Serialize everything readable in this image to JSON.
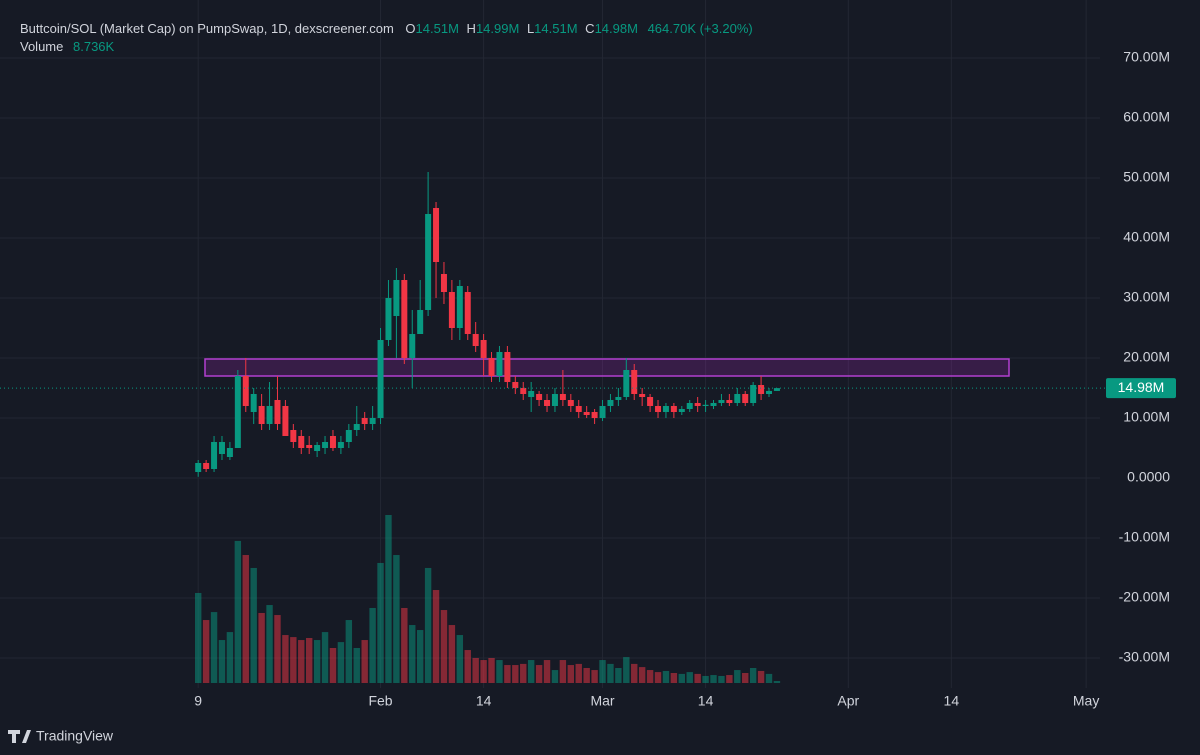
{
  "chart_data": {
    "type": "candlestick",
    "title": "Buttcoin/SOL (Market Cap) on PumpSwap, 1D, dexscreener.com",
    "ohlc_keys": [
      "O",
      "H",
      "L",
      "C"
    ],
    "last_labels": [
      "14.51M",
      "14.99M",
      "14.51M",
      "14.98M"
    ],
    "change_label": "464.70K (+3.20%)",
    "volume_title": "Volume",
    "volume_last_label": "8.736K",
    "brand": "TradingView",
    "x": [
      0,
      1,
      2,
      3,
      4,
      5,
      6,
      7,
      8,
      9,
      10,
      11,
      12,
      13,
      14,
      15,
      16,
      17,
      18,
      19,
      20,
      21,
      22,
      23,
      24,
      25,
      26,
      27,
      28,
      29,
      30,
      31,
      32,
      33,
      34,
      35,
      36,
      37,
      38,
      39,
      40,
      41,
      42,
      43,
      44,
      45,
      46,
      47,
      48,
      49,
      50,
      51,
      52,
      53,
      54,
      55,
      56,
      57,
      58,
      59,
      60,
      61,
      62,
      63,
      64,
      65,
      66,
      67,
      68,
      69,
      70,
      71,
      72,
      73
    ],
    "open": [
      1000000.0,
      2500000.0,
      1500000.0,
      4000000.0,
      3500000.0,
      5000000.0,
      17000000.0,
      11000000.0,
      12000000.0,
      9000000.0,
      13000000.0,
      12000000.0,
      8000000.0,
      7000000.0,
      5500000.0,
      4500000.0,
      5000000.0,
      7000000.0,
      5000000.0,
      6000000.0,
      8000000.0,
      10000000.0,
      9000000.0,
      10000000.0,
      23000000.0,
      27000000.0,
      33000000.0,
      20000000.0,
      24000000.0,
      28000000.0,
      45000000.0,
      34000000.0,
      31000000.0,
      25000000.0,
      31000000.0,
      24000000.0,
      23000000.0,
      20000000.0,
      17000000.0,
      21000000.0,
      16000000.0,
      15000000.0,
      13500000.0,
      14000000.0,
      13000000.0,
      12000000.0,
      14000000.0,
      13000000.0,
      12000000.0,
      11000000.0,
      11000000.0,
      10000000.0,
      12000000.0,
      13000000.0,
      13500000.0,
      18000000.0,
      14000000.0,
      13500000.0,
      12000000.0,
      11000000.0,
      12000000.0,
      11000000.0,
      11500000.0,
      12500000.0,
      12000000.0,
      12000000.0,
      12500000.0,
      13000000.0,
      12500000.0,
      14000000.0,
      12500000.0,
      15500000.0,
      14000000.0,
      14510000.0
    ],
    "high": [
      3000000.0,
      3000000.0,
      7000000.0,
      7000000.0,
      6000000.0,
      18000000.0,
      20000000.0,
      15000000.0,
      14000000.0,
      16000000.0,
      17000000.0,
      13000000.0,
      9000000.0,
      8000000.0,
      7000000.0,
      6000000.0,
      7000000.0,
      8000000.0,
      7000000.0,
      9000000.0,
      12000000.0,
      11000000.0,
      12000000.0,
      25000000.0,
      33000000.0,
      35000000.0,
      34000000.0,
      28000000.0,
      33000000.0,
      51000000.0,
      46000000.0,
      36000000.0,
      33000000.0,
      33000000.0,
      32000000.0,
      26000000.0,
      24000000.0,
      21000000.0,
      22000000.0,
      22000000.0,
      17000000.0,
      16000000.0,
      16000000.0,
      14500000.0,
      14000000.0,
      15000000.0,
      18000000.0,
      14000000.0,
      13000000.0,
      12000000.0,
      11500000.0,
      13000000.0,
      14000000.0,
      15000000.0,
      20000000.0,
      19000000.0,
      15000000.0,
      14000000.0,
      13000000.0,
      12500000.0,
      12500000.0,
      12000000.0,
      13000000.0,
      13500000.0,
      13000000.0,
      13000000.0,
      14000000.0,
      14000000.0,
      15000000.0,
      14500000.0,
      16000000.0,
      17000000.0,
      15000000.0,
      14990000.0
    ],
    "low": [
      200000.0,
      1000000.0,
      1000000.0,
      3000000.0,
      3000000.0,
      5000000.0,
      11000000.0,
      9000000.0,
      8000000.0,
      8000000.0,
      8000000.0,
      7000000.0,
      5000000.0,
      4000000.0,
      4000000.0,
      3500000.0,
      4000000.0,
      4500000.0,
      4000000.0,
      5000000.0,
      7000000.0,
      8000000.0,
      8000000.0,
      9000000.0,
      22000000.0,
      20000000.0,
      19000000.0,
      15000000.0,
      24000000.0,
      27000000.0,
      30000000.0,
      29000000.0,
      23000000.0,
      23000000.0,
      23000000.0,
      21000000.0,
      17000000.0,
      16000000.0,
      16000000.0,
      15000000.0,
      14000000.0,
      13000000.0,
      11000000.0,
      12000000.0,
      11000000.0,
      11000000.0,
      12000000.0,
      11000000.0,
      10000000.0,
      10000000.0,
      9000000.0,
      9500000.0,
      11000000.0,
      12000000.0,
      13000000.0,
      13000000.0,
      12000000.0,
      11000000.0,
      10000000.0,
      10000000.0,
      10000000.0,
      10500000.0,
      11000000.0,
      11000000.0,
      11000000.0,
      11500000.0,
      12000000.0,
      12000000.0,
      12000000.0,
      12000000.0,
      12000000.0,
      13000000.0,
      13500000.0,
      14510000.0
    ],
    "close": [
      2500000.0,
      1500000.0,
      6000000.0,
      6000000.0,
      5000000.0,
      17000000.0,
      12000000.0,
      14000000.0,
      9000000.0,
      12000000.0,
      9000000.0,
      7000000.0,
      6000000.0,
      5000000.0,
      5000000.0,
      5500000.0,
      6000000.0,
      5000000.0,
      6000000.0,
      8000000.0,
      9000000.0,
      9000000.0,
      10000000.0,
      23000000.0,
      30000000.0,
      33000000.0,
      20000000.0,
      24000000.0,
      28000000.0,
      44000000.0,
      36000000.0,
      31000000.0,
      25000000.0,
      32000000.0,
      24000000.0,
      22000000.0,
      20000000.0,
      17000000.0,
      21000000.0,
      16000000.0,
      15000000.0,
      14000000.0,
      14500000.0,
      13000000.0,
      12000000.0,
      14000000.0,
      13000000.0,
      12000000.0,
      11000000.0,
      10500000.0,
      10000000.0,
      12000000.0,
      13000000.0,
      13500000.0,
      18000000.0,
      14000000.0,
      13500000.0,
      12000000.0,
      11000000.0,
      12000000.0,
      11000000.0,
      11500000.0,
      12500000.0,
      12000000.0,
      12200000.0,
      12500000.0,
      13000000.0,
      12500000.0,
      14000000.0,
      12500000.0,
      15500000.0,
      14000000.0,
      14510000.0,
      14980000.0
    ],
    "volume": [
      396000.0,
      277000.0,
      312000.0,
      189000.0,
      224000.0,
      625000.0,
      563000.0,
      506000.0,
      308000.0,
      343000.0,
      299000.0,
      211000.0,
      202000.0,
      189000.0,
      198000.0,
      189000.0,
      224000.0,
      154000.0,
      180000.0,
      277000.0,
      154000.0,
      189000.0,
      330000.0,
      528000.0,
      739000.0,
      563000.0,
      330000.0,
      255000.0,
      233000.0,
      506000.0,
      409000.0,
      321000.0,
      255000.0,
      211000.0,
      145000.0,
      110000.0,
      101000.0,
      110000.0,
      101000.0,
      79000.0,
      79000.0,
      84000.0,
      101000.0,
      79000.0,
      101000.0,
      57000.0,
      101000.0,
      79000.0,
      84000.0,
      66000.0,
      57000.0,
      101000.0,
      84000.0,
      66000.0,
      114000.0,
      84000.0,
      70000.0,
      57000.0,
      48000.0,
      53000.0,
      44000.0,
      40000.0,
      48000.0,
      40000.0,
      31000.0,
      35000.0,
      31000.0,
      35000.0,
      57000.0,
      44000.0,
      66000.0,
      53000.0,
      40000.0,
      8736
    ],
    "up_color": "#089981",
    "down_color": "#f23645",
    "xlim": [
      -25,
      113.75
    ],
    "xticks": [
      {
        "value": 0,
        "label": "9"
      },
      {
        "value": 23,
        "label": "Feb"
      },
      {
        "value": 36,
        "label": "14"
      },
      {
        "value": 51,
        "label": "Mar"
      },
      {
        "value": 64,
        "label": "14"
      },
      {
        "value": 82,
        "label": "Apr"
      },
      {
        "value": 95,
        "label": "14"
      },
      {
        "value": 112,
        "label": "May"
      }
    ],
    "ylim": [
      -35000000,
      79666667
    ],
    "yticks": [
      {
        "value": -30000000,
        "label": "-30.00M"
      },
      {
        "value": -20000000,
        "label": "-20.00M"
      },
      {
        "value": -10000000,
        "label": "-10.00M"
      },
      {
        "value": 0,
        "label": "0.0000"
      },
      {
        "value": 10000000,
        "label": "10.00M"
      },
      {
        "value": 20000000,
        "label": "20.00M"
      },
      {
        "value": 30000000,
        "label": "30.00M"
      },
      {
        "value": 40000000,
        "label": "40.00M"
      },
      {
        "value": 50000000,
        "label": "50.00M"
      },
      {
        "value": 60000000,
        "label": "60.00M"
      },
      {
        "value": 70000000,
        "label": "70.00M"
      }
    ],
    "grid": true
  }
}
